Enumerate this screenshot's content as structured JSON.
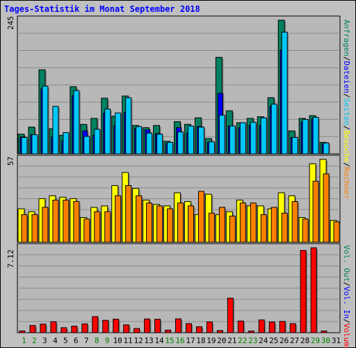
{
  "title": "Tages-Statistik im Monat September 2018",
  "axes": {
    "top_max_label": "245",
    "mid_max_label": "57",
    "bot_max_label": "7.12"
  },
  "legend_right": {
    "top": [
      {
        "text": "Anfragen",
        "color": "#008060"
      },
      {
        "text": "/",
        "color": "#000000"
      },
      {
        "text": "Dateien",
        "color": "#0000ff"
      },
      {
        "text": "/",
        "color": "#000000"
      },
      {
        "text": "Seiten",
        "color": "#00c8ff"
      },
      {
        "text": "/",
        "color": "#000000"
      },
      {
        "text": "Besuche",
        "color": "#ffff00"
      },
      {
        "text": "/",
        "color": "#000000"
      },
      {
        "text": "Rechner",
        "color": "#ff8000"
      }
    ],
    "bottom": [
      {
        "text": "Vol. Out",
        "color": "#008060"
      },
      {
        "text": "/",
        "color": "#000000"
      },
      {
        "text": "Vol. In",
        "color": "#0000ff"
      },
      {
        "text": "/",
        "color": "#000000"
      },
      {
        "text": "Volumen",
        "color": "#ff0000"
      }
    ]
  },
  "chart_data": {
    "type": "bar",
    "title": "Tages-Statistik im Monat September 2018",
    "categories": [
      "1",
      "2",
      "3",
      "4",
      "5",
      "6",
      "7",
      "8",
      "9",
      "10",
      "11",
      "12",
      "13",
      "14",
      "15",
      "16",
      "17",
      "18",
      "19",
      "20",
      "21",
      "22",
      "23",
      "24",
      "25",
      "26",
      "27",
      "28",
      "29",
      "30",
      "31"
    ],
    "weekend_days": [
      "1",
      "2",
      "8",
      "9",
      "15",
      "16",
      "22",
      "23",
      "29",
      "30"
    ],
    "colors": {
      "hits": "#008060",
      "files": "#0000ff",
      "pages": "#00c8ff",
      "visits": "#ffff00",
      "sites": "#ff8000",
      "volume": "#ff0000",
      "weekday_label": "#000000",
      "weekend_label": "#008000"
    },
    "panels": [
      {
        "name": "top",
        "ymax": 245,
        "series": [
          {
            "name": "Anfragen",
            "key": "hits",
            "values": [
              36,
              49,
              154,
              46,
              34,
              123,
              54,
              65,
              102,
              69,
              106,
              52,
              48,
              52,
              23,
              59,
              54,
              66,
              28,
              177,
              79,
              57,
              65,
              68,
              103,
              245,
              42,
              65,
              70,
              21,
              0
            ]
          },
          {
            "name": "Dateien",
            "key": "files",
            "values": [
              31,
              35,
              119,
              31,
              24,
              107,
              42,
              34,
              75,
              52,
              76,
              46,
              44,
              37,
              19,
              48,
              38,
              50,
              21,
              111,
              51,
              48,
              52,
              52,
              87,
              191,
              30,
              58,
              64,
              18,
              0
            ]
          },
          {
            "name": "Seiten",
            "key": "pages",
            "values": [
              30,
              35,
              124,
              87,
              39,
              116,
              32,
              45,
              82,
              75,
              103,
              50,
              38,
              36,
              21,
              40,
              51,
              49,
              22,
              71,
              51,
              57,
              58,
              66,
              91,
              223,
              30,
              63,
              67,
              20,
              0
            ]
          }
        ]
      },
      {
        "name": "middle",
        "ymax": 57,
        "series": [
          {
            "name": "Besuche",
            "key": "visits",
            "values": [
              23,
              21,
              30,
              32,
              31,
              30,
              17,
              24,
              25,
              39,
              48,
              37,
              29,
              26,
              25,
              34,
              28,
              19,
              33,
              19,
              21,
              29,
              25,
              25,
              23,
              34,
              32,
              17,
              54,
              57,
              15
            ]
          },
          {
            "name": "Rechner",
            "key": "sites",
            "values": [
              19,
              19,
              24,
              29,
              29,
              28,
              16,
              21,
              21,
              32,
              39,
              32,
              27,
              25,
              23,
              27,
              25,
              35,
              20,
              24,
              18,
              27,
              27,
              19,
              24,
              20,
              28,
              16,
              42,
              47,
              14
            ]
          }
        ]
      },
      {
        "name": "bottom",
        "ymax": 7.12,
        "series": [
          {
            "name": "Volumen",
            "key": "volume",
            "values": [
              0.15,
              0.6,
              0.72,
              0.92,
              0.42,
              0.55,
              0.74,
              1.35,
              1.04,
              1.14,
              0.66,
              0.35,
              1.15,
              1.13,
              0.22,
              1.16,
              0.76,
              0.5,
              0.9,
              0.18,
              2.9,
              0.98,
              0.14,
              1.07,
              0.9,
              0.95,
              0.76,
              6.9,
              7.12,
              0.14,
              0
            ]
          }
        ]
      }
    ]
  }
}
